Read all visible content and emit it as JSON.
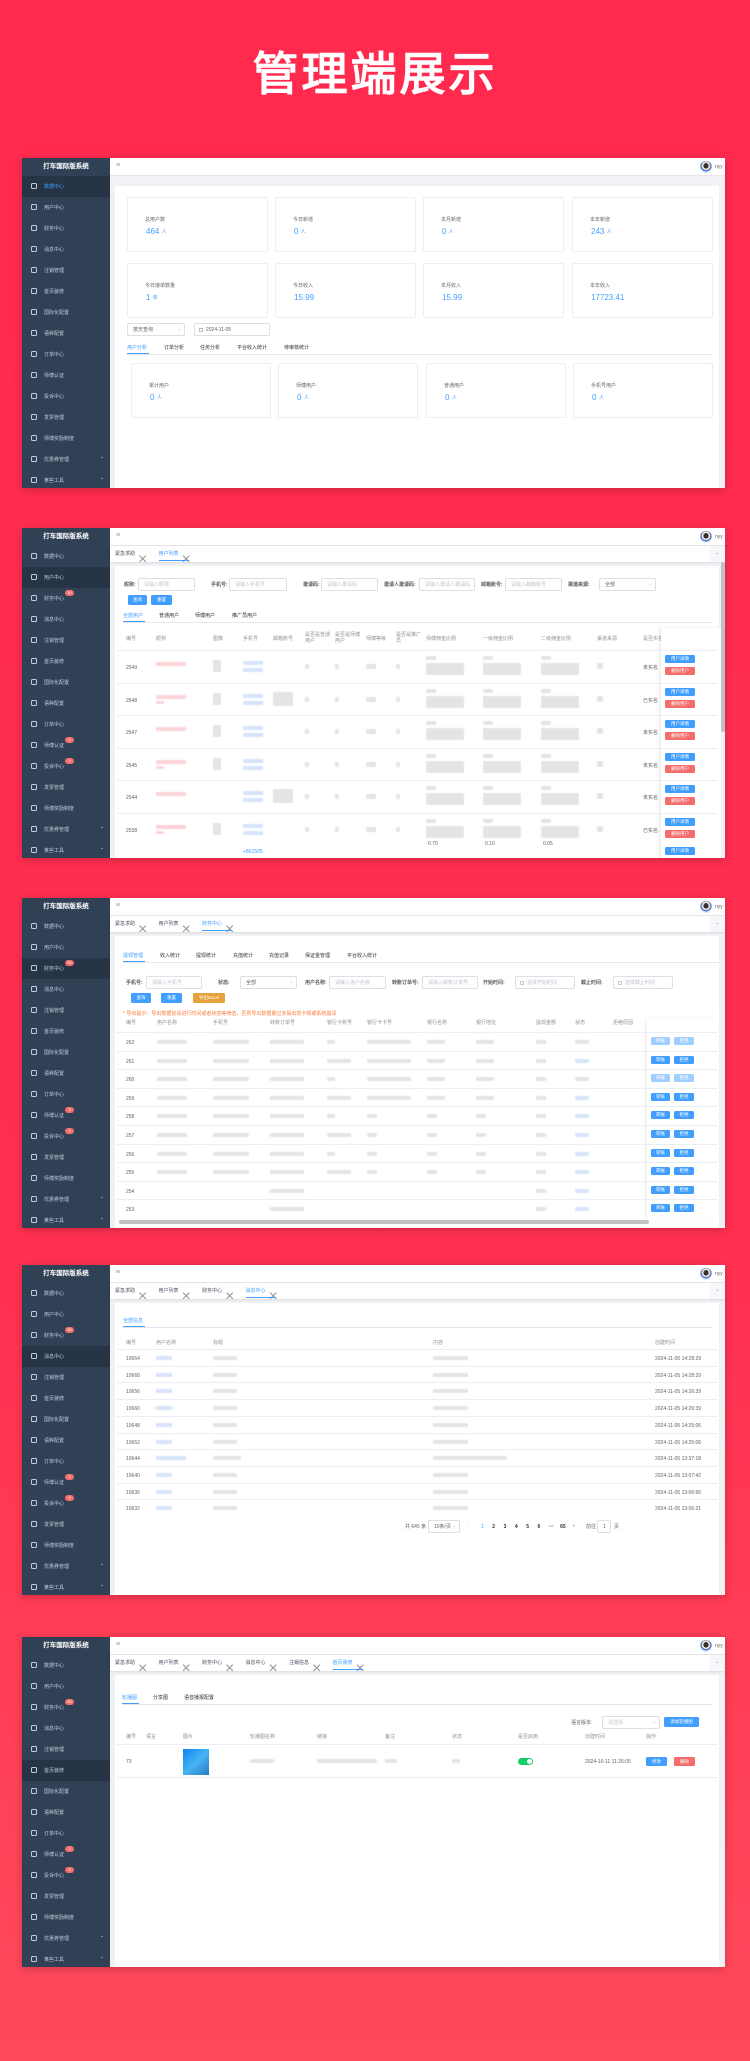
{
  "banner": {
    "title": "管理端展示"
  },
  "app": {
    "title": "打车国际版系统",
    "user": "nyy"
  },
  "colors": {
    "background": "#ff2a4e",
    "sidebar": "#304156",
    "primary": "#409eff",
    "danger": "#f56c6c",
    "warning": "#e6a23c",
    "success": "#13ce66"
  },
  "sidebar": {
    "items": [
      {
        "label": "数据中心",
        "icon": "monitor-icon"
      },
      {
        "label": "用户中心",
        "icon": "user-icon"
      },
      {
        "label": "财务中心",
        "icon": "wallet-icon",
        "badge": "30"
      },
      {
        "label": "消息中心",
        "icon": "message-icon"
      },
      {
        "label": "注销管理",
        "icon": "layers-icon"
      },
      {
        "label": "首页装修",
        "icon": "box-icon"
      },
      {
        "label": "国际化配置",
        "icon": "document-icon"
      },
      {
        "label": "语种配置",
        "icon": "settings-icon"
      },
      {
        "label": "订单中心",
        "icon": "clipboard-icon"
      },
      {
        "label": "师傅认证",
        "icon": "box-icon",
        "badge": "3"
      },
      {
        "label": "投诉中心",
        "icon": "user-icon",
        "badge": "9"
      },
      {
        "label": "发票管理",
        "icon": "cloud-upload-icon"
      },
      {
        "label": "师傅奖励制度",
        "icon": "document-icon"
      },
      {
        "label": "优惠券管理",
        "icon": "box-icon",
        "has_children": true
      },
      {
        "label": "某些工具",
        "icon": "document-icon",
        "has_children": true
      }
    ]
  },
  "panels": [
    {
      "active_menu": 0,
      "show_badges": false,
      "tags": [],
      "stats": [
        {
          "label": "总用户数",
          "value": "464",
          "unit": "人"
        },
        {
          "label": "今日新增",
          "value": "0",
          "unit": "人"
        },
        {
          "label": "本月新增",
          "value": "0",
          "unit": "人"
        },
        {
          "label": "本年新增",
          "value": "243",
          "unit": "人"
        },
        {
          "label": "今日接单数量",
          "value": "1",
          "unit": "单"
        },
        {
          "label": "今日收入",
          "value": "15.99",
          "unit": ""
        },
        {
          "label": "本月收入",
          "value": "15.99",
          "unit": ""
        },
        {
          "label": "本年收入",
          "value": "17723.41",
          "unit": ""
        }
      ],
      "query_select": "按天查询",
      "date": "2024-11-05",
      "tabs": [
        "用户分析",
        "订单分析",
        "任务分析",
        "平台收入统计",
        "待审核统计"
      ],
      "active_tab": 0,
      "user_stats": [
        {
          "label": "累计用户",
          "value": "0",
          "unit": "人"
        },
        {
          "label": "师傅用户",
          "value": "0",
          "unit": "人"
        },
        {
          "label": "普通用户",
          "value": "0",
          "unit": "人"
        },
        {
          "label": "手机号用户",
          "value": "0",
          "unit": "人"
        }
      ]
    },
    {
      "active_menu": 1,
      "show_badges": true,
      "tags": [
        "紧急求助",
        "用户列表"
      ],
      "active_tag": 1,
      "filters": [
        {
          "label": "昵称:",
          "placeholder": "请输入昵称"
        },
        {
          "label": "手机号:",
          "placeholder": "请输入手机号"
        },
        {
          "label": "邀请码:",
          "placeholder": "请输入邀请码"
        },
        {
          "label": "邀请人邀请码:",
          "placeholder": "请输入邀请人邀请码"
        },
        {
          "label": "邮箱账号:",
          "placeholder": "请输入邮箱账号"
        }
      ],
      "channel": {
        "label": "渠道来源:",
        "value": "全部"
      },
      "buttons": [
        "查询",
        "重置"
      ],
      "tabs": [
        "全部用户",
        "普通用户",
        "师傅用户",
        "推广员用户"
      ],
      "active_tab": 0,
      "columns": [
        "编号",
        "昵称",
        "图像",
        "手机号",
        "邮箱账号",
        "是否是普通用户",
        "是否是师傅用户",
        "师傅等级",
        "是否是推广员",
        "师傅佣金比例",
        "一级佣金比例",
        "二级佣金比例",
        "渠道来源",
        "是否实名",
        "操作"
      ],
      "rows": [
        {
          "id": "2549",
          "realname": "未实名"
        },
        {
          "id": "2548",
          "realname": "已实名"
        },
        {
          "id": "2547",
          "realname": "未实名"
        },
        {
          "id": "2545",
          "realname": "未实名"
        },
        {
          "id": "2544",
          "realname": "未实名"
        },
        {
          "id": "2538",
          "realname": "已实名"
        }
      ],
      "partial_row": {
        "phone": "+861505",
        "ratios": [
          "0.70",
          "0.10",
          "0.05"
        ]
      },
      "actions": [
        "用户详情",
        "删除用户"
      ]
    },
    {
      "active_menu": 2,
      "show_badges": true,
      "tags": [
        "紧急求助",
        "用户列表",
        "财务中心"
      ],
      "active_tag": 2,
      "tabs": [
        "提现管理",
        "收入统计",
        "提现统计",
        "充值统计",
        "充值记录",
        "保证金管理",
        "平台收入统计"
      ],
      "active_tab": 0,
      "filters": [
        {
          "label": "手机号:",
          "placeholder": "请输入手机号"
        },
        {
          "label": "状态:",
          "placeholder": "全部"
        },
        {
          "label": "用户名称:",
          "placeholder": "请输入用户名称"
        },
        {
          "label": "转账订单号:",
          "placeholder": "请输入转账订单号"
        },
        {
          "label": "开始时间:",
          "placeholder": "选择开始时间"
        },
        {
          "label": "截止时间:",
          "placeholder": "选择截止时间"
        }
      ],
      "buttons": [
        "查询",
        "重置",
        "导出Excel"
      ],
      "notice": "* 导出提示：导出数据前请进行时间或者状态等筛选，否则导出数据量过多易出现卡顿或系统崩溃",
      "columns": [
        "编号",
        "用户名称",
        "手机号",
        "转账订单号",
        "银行卡账号",
        "银行卡卡号",
        "银行名称",
        "银行地址",
        "提现金额",
        "状态",
        "拒绝原因",
        "操作"
      ],
      "rows": [
        {
          "id": "262",
          "disabled": true
        },
        {
          "id": "261"
        },
        {
          "id": "260",
          "disabled": true
        },
        {
          "id": "259"
        },
        {
          "id": "258"
        },
        {
          "id": "257"
        },
        {
          "id": "256"
        },
        {
          "id": "255"
        },
        {
          "id": "254"
        },
        {
          "id": "253"
        }
      ],
      "actions": [
        "转账",
        "拒绝"
      ]
    },
    {
      "active_menu": 3,
      "show_badges": true,
      "tags": [
        "紧急求助",
        "用户列表",
        "财务中心",
        "消息中心"
      ],
      "active_tag": 3,
      "tabs": [
        "全部信息"
      ],
      "active_tab": 0,
      "columns": [
        "编号",
        "用户名称",
        "标题",
        "内容",
        "创建时间"
      ],
      "rows": [
        {
          "id": "10664",
          "time": "2024-11-05 14:28:29"
        },
        {
          "id": "10668",
          "time": "2024-11-05 14:28:29"
        },
        {
          "id": "10656",
          "time": "2024-11-05 14:26:39"
        },
        {
          "id": "10660",
          "time": "2024-11-05 14:26:39"
        },
        {
          "id": "10648",
          "time": "2024-11-05 14:25:06"
        },
        {
          "id": "10652",
          "time": "2024-11-05 14:25:06"
        },
        {
          "id": "10644",
          "time": "2024-11-05 13:37:18"
        },
        {
          "id": "10640",
          "time": "2024-11-05 13:07:42"
        },
        {
          "id": "10636",
          "time": "2024-11-05 13:06:56"
        },
        {
          "id": "10632",
          "time": "2024-11-05 13:06:21"
        }
      ],
      "pagination": {
        "total": "共 645 条",
        "page_size": "10条/页",
        "pages": [
          "1",
          "2",
          "3",
          "4",
          "5",
          "6",
          "···",
          "65"
        ],
        "current": "1",
        "goto_label": "前往",
        "goto_value": "1",
        "page_suffix": "页",
        "prev": "‹",
        "next": "›"
      }
    },
    {
      "active_menu": 5,
      "show_badges": true,
      "tags": [
        "紧急求助",
        "用户列表",
        "财务中心",
        "消息中心",
        "注销信息",
        "首页装修"
      ],
      "active_tag": 5,
      "tabs": [
        "轮播图",
        "分享图",
        "语音播报配置"
      ],
      "active_tab": 0,
      "language_label": "语言版本:",
      "language_placeholder": "请选择",
      "add_button": "添加轮播图",
      "columns": [
        "编号",
        "语言",
        "图片",
        "轮播图名称",
        "链接",
        "备注",
        "状态",
        "是否启用",
        "创建时间",
        "操作"
      ],
      "rows": [
        {
          "id": "73",
          "enabled": true,
          "time": "2024-10-11 11:26:05"
        }
      ],
      "actions": [
        "修改",
        "删除"
      ]
    }
  ]
}
